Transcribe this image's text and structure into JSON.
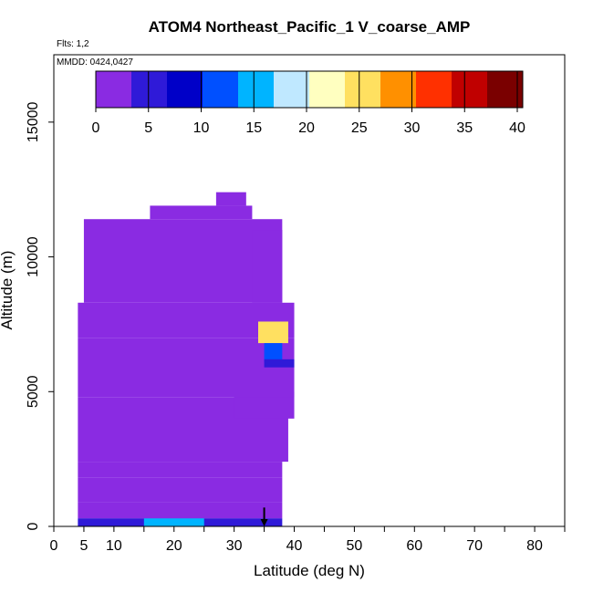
{
  "chart_data": {
    "type": "heatmap",
    "title": "ATOM4 Northeast_Pacific_1 V_coarse_AMP",
    "subtitle_flights": "Flts: 1,2",
    "subtitle_dates": "MMDD: 0424,0427",
    "xlabel": "Latitude (deg N)",
    "ylabel": "Altitude (m)",
    "xlim": [
      0,
      85
    ],
    "ylim": [
      0,
      17500
    ],
    "x_ticks": [
      0,
      5,
      10,
      20,
      30,
      40,
      50,
      60,
      70,
      80
    ],
    "x_tick_labels": [
      "0",
      "5",
      "10",
      "20",
      "30",
      "40",
      "50",
      "60",
      "70",
      "80"
    ],
    "y_ticks": [
      0,
      5000,
      10000,
      15000
    ],
    "y_tick_labels": [
      "0",
      "5000",
      "10000",
      "15000"
    ],
    "colorbar": {
      "min": 0,
      "max": 40,
      "ticks": [
        0,
        5,
        10,
        15,
        20,
        25,
        30,
        35,
        40
      ],
      "tick_labels": [
        "0",
        "5",
        "10",
        "15",
        "20",
        "25",
        "30",
        "35",
        "40"
      ],
      "colors": [
        "#8a2be2",
        "#2f1ad8",
        "#0000c8",
        "#0050ff",
        "#00b4ff",
        "#bfe8ff",
        "#ffffc0",
        "#ffe060",
        "#ff9000",
        "#ff3000",
        "#c00000",
        "#7a0000"
      ]
    },
    "cells": [
      {
        "lat": [
          4,
          38
        ],
        "alt": [
          0,
          300
        ],
        "value": 5
      },
      {
        "lat": [
          15,
          25
        ],
        "alt": [
          0,
          300
        ],
        "value": 14
      },
      {
        "lat": [
          4,
          38
        ],
        "alt": [
          300,
          900
        ],
        "value": 3
      },
      {
        "lat": [
          4,
          38
        ],
        "alt": [
          900,
          1800
        ],
        "value": 2
      },
      {
        "lat": [
          4,
          38
        ],
        "alt": [
          1800,
          2400
        ],
        "value": 1.5
      },
      {
        "lat": [
          4,
          39
        ],
        "alt": [
          2400,
          4800
        ],
        "value": 1
      },
      {
        "lat": [
          30,
          40
        ],
        "alt": [
          4000,
          5000
        ],
        "value": 2.5
      },
      {
        "lat": [
          4,
          40
        ],
        "alt": [
          4800,
          7000
        ],
        "value": 0.5
      },
      {
        "lat": [
          4,
          40
        ],
        "alt": [
          7000,
          8300
        ],
        "value": 0.5
      },
      {
        "lat": [
          34,
          39
        ],
        "alt": [
          6800,
          7600
        ],
        "value": 26
      },
      {
        "lat": [
          35,
          38
        ],
        "alt": [
          6100,
          6800
        ],
        "value": 10
      },
      {
        "lat": [
          35,
          40
        ],
        "alt": [
          5900,
          6200
        ],
        "value": 5
      },
      {
        "lat": [
          5,
          38
        ],
        "alt": [
          8300,
          11400
        ],
        "value": 0.5
      },
      {
        "lat": [
          33,
          38
        ],
        "alt": [
          8300,
          11000
        ],
        "value": 3
      },
      {
        "lat": [
          16,
          33
        ],
        "alt": [
          11400,
          11900
        ],
        "value": 0.5
      },
      {
        "lat": [
          27,
          32
        ],
        "alt": [
          11900,
          12400
        ],
        "value": 0.5
      }
    ],
    "arrow": {
      "lat": 35,
      "alt_from": 700,
      "alt_to": 0
    }
  }
}
